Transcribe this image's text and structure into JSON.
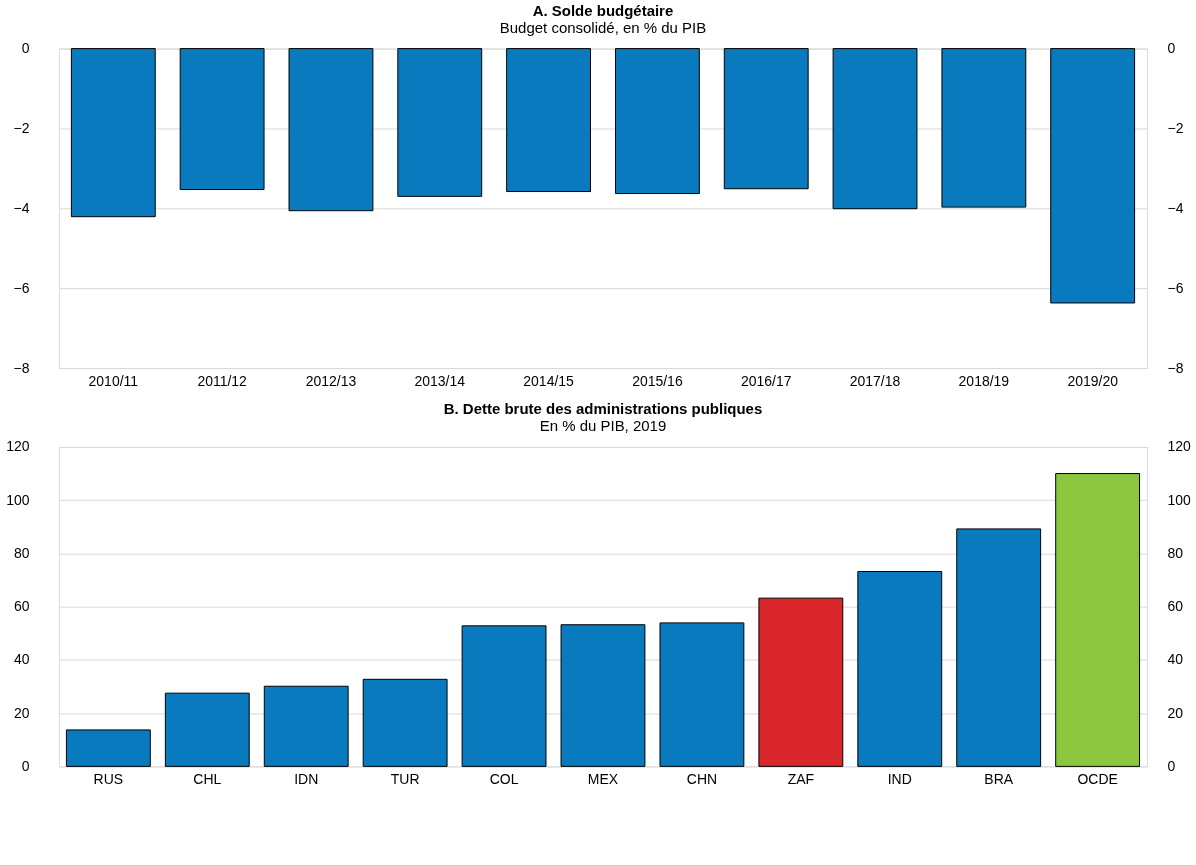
{
  "chart_data": [
    {
      "type": "bar",
      "title": "A. Solde budgétaire",
      "subtitle": "Budget consolidé, en % du PIB",
      "categories": [
        "2010/11",
        "2011/12",
        "2012/13",
        "2013/14",
        "2014/15",
        "2015/16",
        "2016/17",
        "2017/18",
        "2018/19",
        "2019/20"
      ],
      "values": [
        -4.21,
        -3.53,
        -4.06,
        -3.7,
        -3.58,
        -3.63,
        -3.51,
        -4.01,
        -3.97,
        -6.37
      ],
      "colors": [
        "#0a7abf",
        "#0a7abf",
        "#0a7abf",
        "#0a7abf",
        "#0a7abf",
        "#0a7abf",
        "#0a7abf",
        "#0a7abf",
        "#0a7abf",
        "#0a7abf"
      ],
      "ylim": [
        -8,
        0
      ],
      "yticks": [
        -8,
        -6,
        -4,
        -2,
        0
      ],
      "y2lim": [
        -8,
        0
      ],
      "y2ticks": [
        -8,
        -6,
        -4,
        -2,
        0
      ],
      "grid": "y"
    },
    {
      "type": "bar",
      "title": "B. Dette brute des administrations publiques",
      "subtitle": "En % du PIB, 2019",
      "categories": [
        "RUS",
        "CHL",
        "IDN",
        "TUR",
        "COL",
        "MEX",
        "CHN",
        "ZAF",
        "IND",
        "BRA",
        "OCDE"
      ],
      "values": [
        13.7,
        27.5,
        30.1,
        32.7,
        52.8,
        53.2,
        53.9,
        63.2,
        73.2,
        89.2,
        110
      ],
      "colors": [
        "#0a7abf",
        "#0a7abf",
        "#0a7abf",
        "#0a7abf",
        "#0a7abf",
        "#0a7abf",
        "#0a7abf",
        "#d9262b",
        "#0a7abf",
        "#0a7abf",
        "#8cc63f"
      ],
      "ylim": [
        0,
        120
      ],
      "yticks": [
        0,
        20,
        40,
        60,
        80,
        100,
        120
      ],
      "y2lim": [
        0,
        120
      ],
      "y2ticks": [
        0,
        20,
        40,
        60,
        80,
        100,
        120
      ],
      "grid": "y"
    }
  ]
}
